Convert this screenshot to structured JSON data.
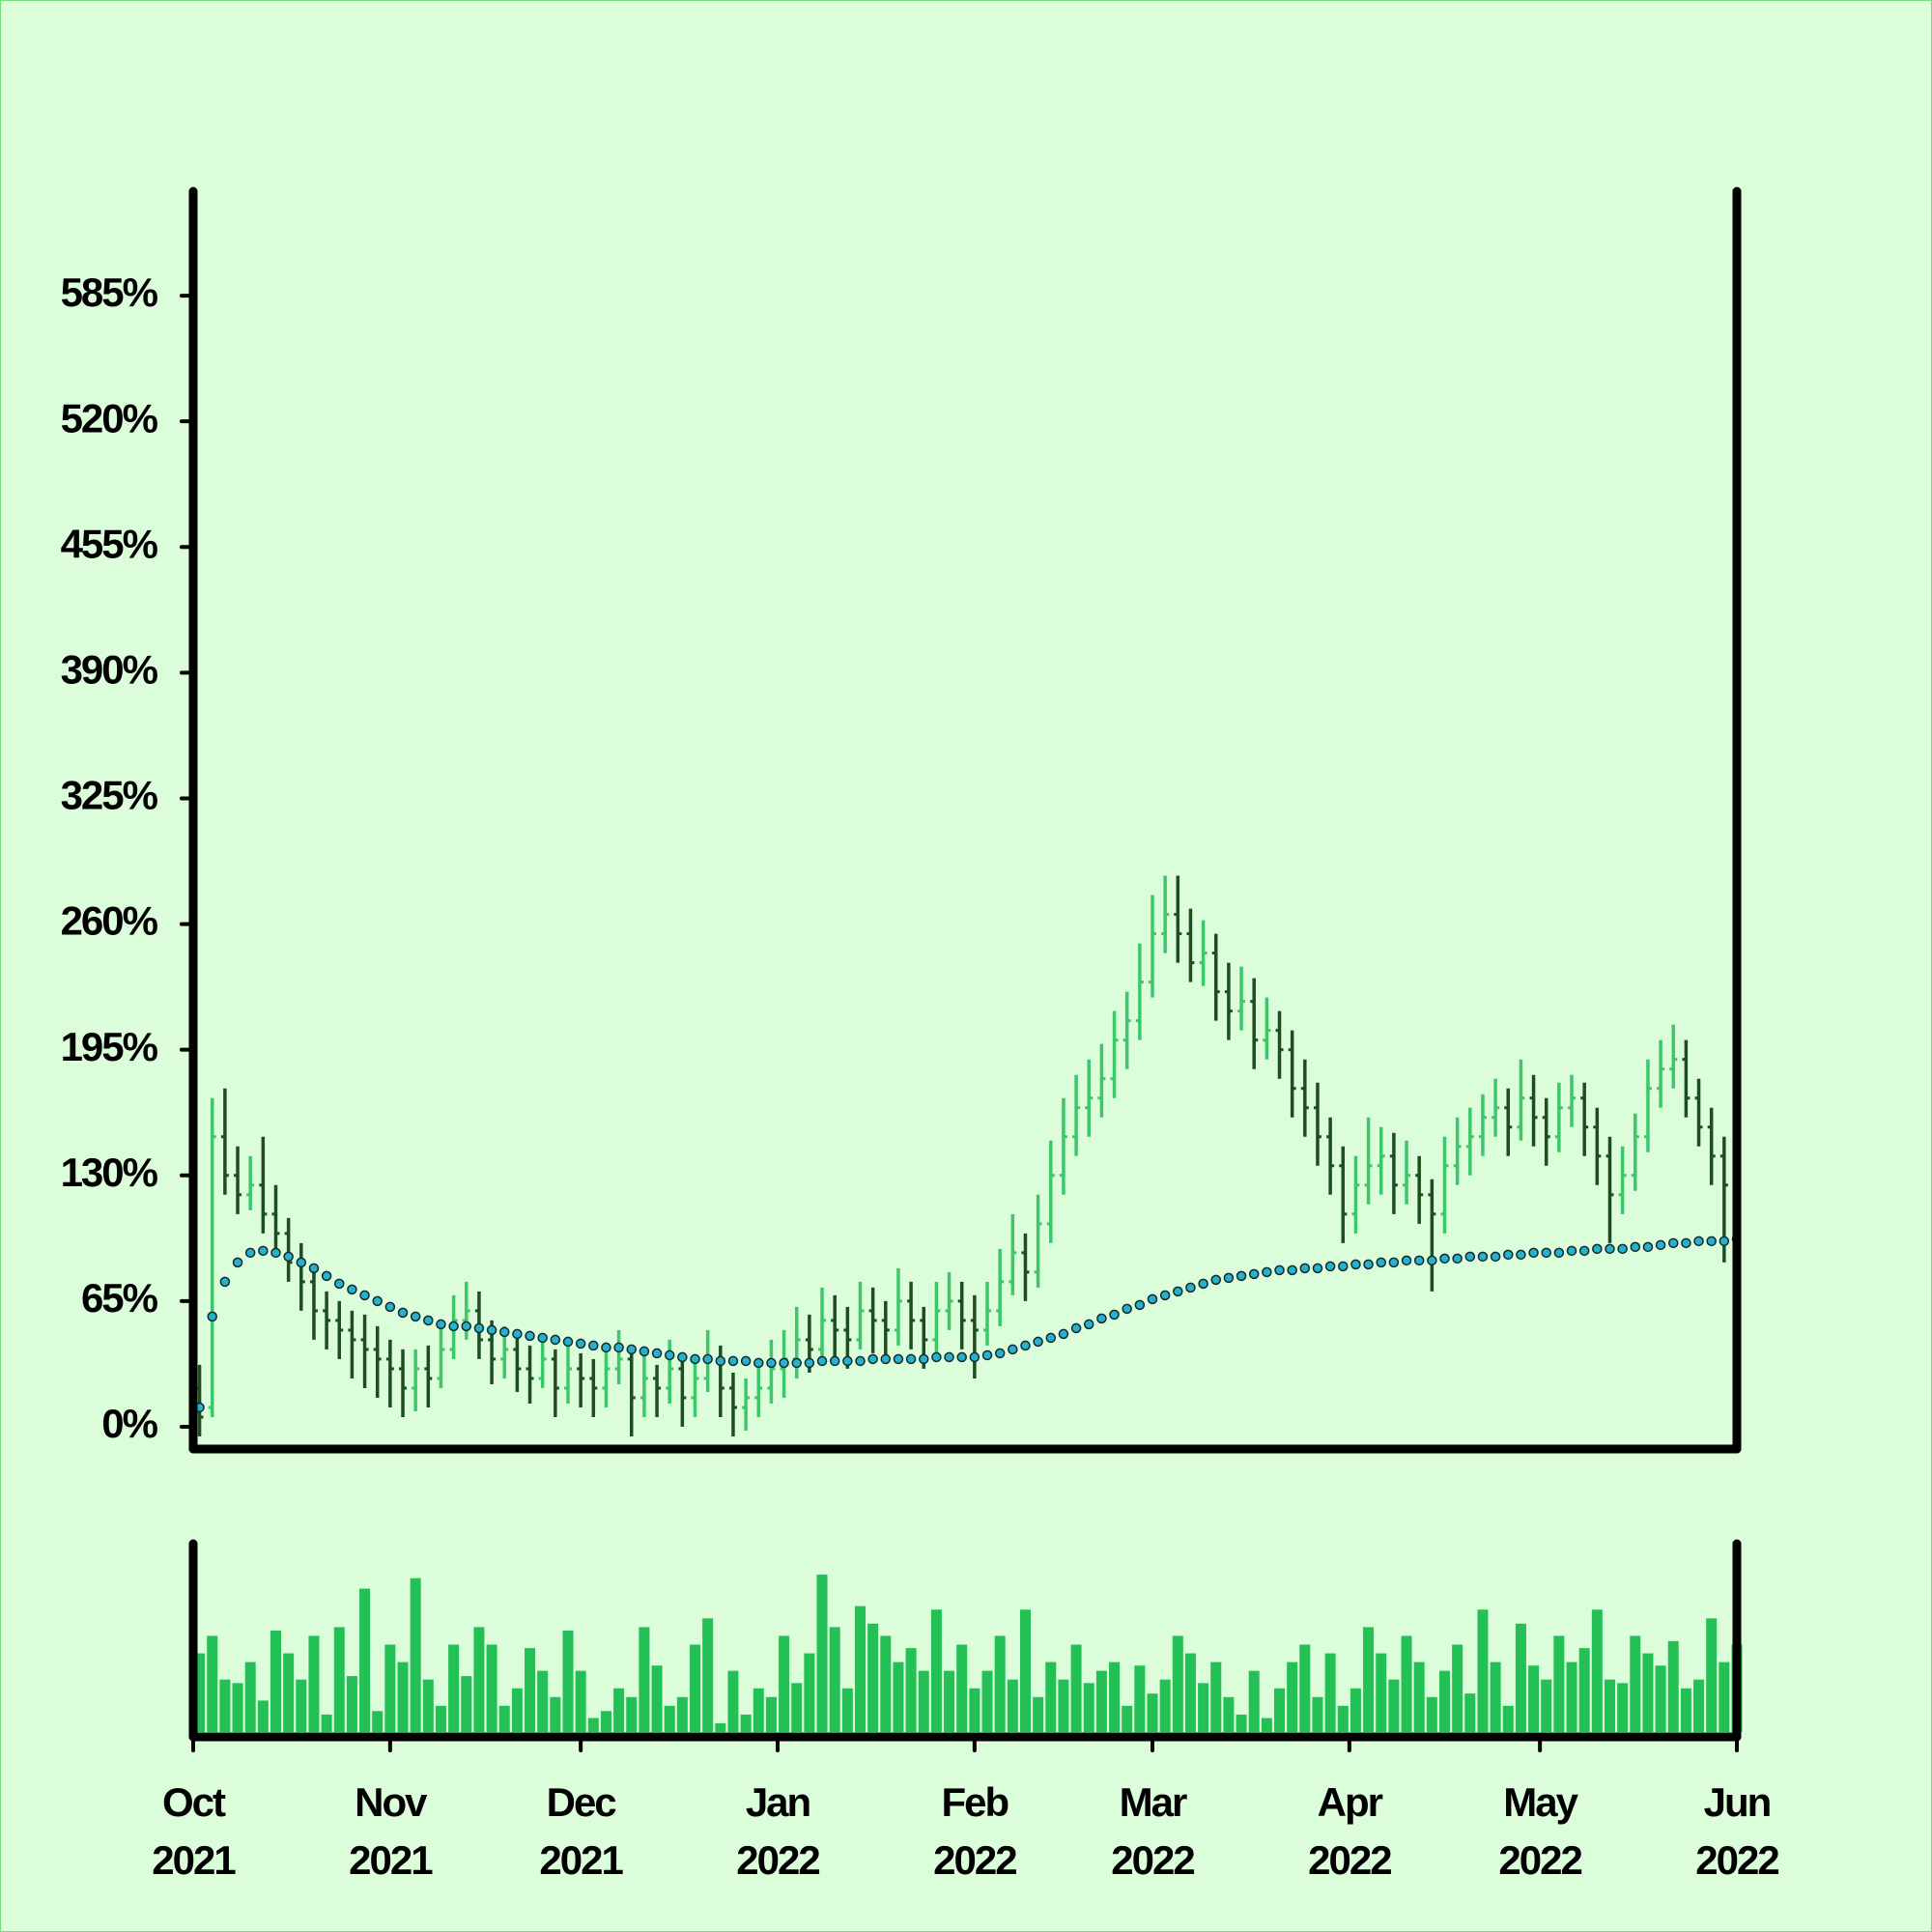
{
  "chart_data": {
    "type": "ohlc",
    "up_color": "#3cc76a",
    "down_color": "#1f4d22",
    "volume_color": "#22c055",
    "ma_color": "#2ab0c8",
    "xlim": [
      0,
      243
    ],
    "xticks": [
      {
        "value": 0,
        "label": "Oct 2021"
      },
      {
        "value": 31,
        "label": "Nov 2021"
      },
      {
        "value": 61,
        "label": "Dec 2021"
      },
      {
        "value": 92,
        "label": "Jan 2022"
      },
      {
        "value": 123,
        "label": "Feb 2022"
      },
      {
        "value": 151,
        "label": "Mar 2022"
      },
      {
        "value": 182,
        "label": "Apr 2022"
      },
      {
        "value": 212,
        "label": "May 2022"
      },
      {
        "value": 243,
        "label": "Jun 2022"
      }
    ],
    "ylim": [
      -11.5,
      639
    ],
    "yticks": [
      {
        "value": 0,
        "label": "0%"
      },
      {
        "value": 65,
        "label": "65%"
      },
      {
        "value": 130,
        "label": "130%"
      },
      {
        "value": 195,
        "label": "195%"
      },
      {
        "value": 260,
        "label": "260%"
      },
      {
        "value": 325,
        "label": "325%"
      },
      {
        "value": 390,
        "label": "390%"
      },
      {
        "value": 455,
        "label": "455%"
      },
      {
        "value": 520,
        "label": "520%"
      },
      {
        "value": 585,
        "label": "585%"
      }
    ],
    "volume_ylim": [
      0,
      100
    ],
    "x": [
      1,
      3,
      5,
      7,
      9,
      11,
      13,
      15,
      17,
      19,
      21,
      23,
      25,
      27,
      29,
      31,
      33,
      35,
      37,
      39,
      41,
      43,
      45,
      47,
      49,
      51,
      53,
      55,
      57,
      59,
      61,
      63,
      65,
      67,
      69,
      71,
      73,
      75,
      77,
      79,
      81,
      83,
      85,
      87,
      89,
      91,
      93,
      95,
      97,
      99,
      101,
      103,
      105,
      107,
      109,
      111,
      113,
      115,
      117,
      119,
      121,
      123,
      125,
      127,
      129,
      131,
      133,
      135,
      137,
      139,
      141,
      143,
      145,
      147,
      149,
      151,
      153,
      155,
      157,
      159,
      161,
      163,
      165,
      167,
      169,
      171,
      173,
      175,
      177,
      179,
      181,
      183,
      185,
      187,
      189,
      191,
      193,
      195,
      197,
      199,
      201,
      203,
      205,
      207,
      209,
      211,
      213,
      215,
      217,
      219,
      221,
      223,
      225,
      227,
      229,
      231,
      233,
      235,
      237,
      239,
      241,
      243
    ],
    "ohlc": [
      [
        20,
        32,
        -5,
        5
      ],
      [
        10,
        170,
        5,
        150
      ],
      [
        150,
        175,
        120,
        130
      ],
      [
        130,
        145,
        110,
        120
      ],
      [
        120,
        140,
        112,
        125
      ],
      [
        125,
        150,
        100,
        110
      ],
      [
        110,
        125,
        90,
        100
      ],
      [
        100,
        108,
        75,
        85
      ],
      [
        85,
        95,
        60,
        75
      ],
      [
        75,
        80,
        45,
        60
      ],
      [
        60,
        70,
        40,
        55
      ],
      [
        55,
        65,
        35,
        50
      ],
      [
        50,
        60,
        25,
        45
      ],
      [
        45,
        58,
        20,
        40
      ],
      [
        40,
        52,
        15,
        35
      ],
      [
        35,
        45,
        10,
        30
      ],
      [
        30,
        40,
        5,
        20
      ],
      [
        20,
        40,
        8,
        30
      ],
      [
        30,
        42,
        10,
        25
      ],
      [
        25,
        52,
        20,
        40
      ],
      [
        40,
        68,
        35,
        55
      ],
      [
        55,
        75,
        45,
        60
      ],
      [
        60,
        70,
        35,
        45
      ],
      [
        45,
        55,
        22,
        35
      ],
      [
        35,
        52,
        25,
        40
      ],
      [
        40,
        48,
        18,
        30
      ],
      [
        30,
        42,
        12,
        25
      ],
      [
        25,
        45,
        20,
        35
      ],
      [
        35,
        40,
        5,
        20
      ],
      [
        20,
        42,
        12,
        30
      ],
      [
        30,
        38,
        10,
        25
      ],
      [
        25,
        35,
        5,
        20
      ],
      [
        20,
        42,
        10,
        30
      ],
      [
        30,
        50,
        22,
        35
      ],
      [
        35,
        40,
        -5,
        15
      ],
      [
        15,
        38,
        5,
        25
      ],
      [
        25,
        32,
        5,
        20
      ],
      [
        20,
        45,
        12,
        30
      ],
      [
        30,
        38,
        0,
        15
      ],
      [
        15,
        35,
        5,
        25
      ],
      [
        25,
        50,
        18,
        35
      ],
      [
        35,
        42,
        5,
        20
      ],
      [
        20,
        28,
        -5,
        10
      ],
      [
        10,
        25,
        -2,
        15
      ],
      [
        15,
        32,
        5,
        20
      ],
      [
        20,
        45,
        12,
        30
      ],
      [
        30,
        50,
        15,
        35
      ],
      [
        35,
        62,
        25,
        45
      ],
      [
        45,
        58,
        28,
        40
      ],
      [
        40,
        72,
        32,
        55
      ],
      [
        55,
        68,
        35,
        50
      ],
      [
        50,
        62,
        30,
        45
      ],
      [
        45,
        75,
        40,
        60
      ],
      [
        60,
        72,
        38,
        55
      ],
      [
        55,
        65,
        35,
        50
      ],
      [
        50,
        82,
        42,
        65
      ],
      [
        65,
        75,
        40,
        55
      ],
      [
        55,
        62,
        30,
        45
      ],
      [
        45,
        75,
        38,
        60
      ],
      [
        60,
        80,
        50,
        65
      ],
      [
        65,
        75,
        40,
        55
      ],
      [
        55,
        68,
        25,
        50
      ],
      [
        50,
        75,
        42,
        60
      ],
      [
        60,
        92,
        52,
        75
      ],
      [
        75,
        110,
        68,
        90
      ],
      [
        90,
        100,
        65,
        80
      ],
      [
        80,
        120,
        72,
        105
      ],
      [
        105,
        148,
        95,
        130
      ],
      [
        130,
        170,
        120,
        150
      ],
      [
        150,
        182,
        140,
        165
      ],
      [
        165,
        190,
        150,
        170
      ],
      [
        170,
        198,
        160,
        180
      ],
      [
        180,
        215,
        170,
        200
      ],
      [
        200,
        225,
        185,
        210
      ],
      [
        210,
        250,
        200,
        230
      ],
      [
        230,
        275,
        222,
        255
      ],
      [
        255,
        285,
        245,
        265
      ],
      [
        265,
        285,
        240,
        255
      ],
      [
        255,
        268,
        230,
        240
      ],
      [
        240,
        262,
        228,
        245
      ],
      [
        245,
        255,
        210,
        225
      ],
      [
        225,
        240,
        200,
        215
      ],
      [
        215,
        238,
        205,
        220
      ],
      [
        220,
        232,
        185,
        200
      ],
      [
        200,
        222,
        190,
        205
      ],
      [
        205,
        215,
        180,
        195
      ],
      [
        195,
        205,
        160,
        175
      ],
      [
        175,
        190,
        150,
        165
      ],
      [
        165,
        178,
        135,
        150
      ],
      [
        150,
        160,
        120,
        135
      ],
      [
        135,
        145,
        95,
        110
      ],
      [
        110,
        140,
        100,
        125
      ],
      [
        125,
        160,
        115,
        135
      ],
      [
        135,
        155,
        120,
        140
      ],
      [
        140,
        152,
        110,
        125
      ],
      [
        125,
        148,
        115,
        130
      ],
      [
        130,
        140,
        105,
        120
      ],
      [
        120,
        128,
        70,
        110
      ],
      [
        110,
        150,
        100,
        135
      ],
      [
        135,
        160,
        125,
        145
      ],
      [
        145,
        165,
        130,
        150
      ],
      [
        150,
        172,
        140,
        160
      ],
      [
        160,
        180,
        150,
        165
      ],
      [
        165,
        175,
        140,
        155
      ],
      [
        155,
        190,
        148,
        170
      ],
      [
        170,
        182,
        145,
        160
      ],
      [
        160,
        170,
        135,
        150
      ],
      [
        150,
        178,
        142,
        165
      ],
      [
        165,
        182,
        155,
        170
      ],
      [
        170,
        178,
        140,
        155
      ],
      [
        155,
        165,
        125,
        140
      ],
      [
        140,
        150,
        95,
        120
      ],
      [
        120,
        145,
        110,
        130
      ],
      [
        130,
        162,
        122,
        150
      ],
      [
        150,
        190,
        142,
        175
      ],
      [
        175,
        200,
        165,
        185
      ],
      [
        185,
        208,
        175,
        190
      ],
      [
        190,
        200,
        160,
        170
      ],
      [
        170,
        180,
        145,
        155
      ],
      [
        155,
        165,
        125,
        140
      ],
      [
        140,
        150,
        85,
        125
      ],
      [
        125,
        135,
        100,
        110
      ]
    ],
    "volume": [
      45,
      55,
      30,
      28,
      40,
      18,
      58,
      45,
      30,
      55,
      10,
      60,
      32,
      82,
      12,
      50,
      40,
      88,
      30,
      15,
      50,
      32,
      60,
      50,
      15,
      25,
      48,
      35,
      20,
      58,
      35,
      8,
      12,
      25,
      20,
      60,
      38,
      15,
      20,
      50,
      65,
      5,
      35,
      10,
      25,
      20,
      55,
      28,
      45,
      90,
      60,
      25,
      72,
      62,
      55,
      40,
      48,
      35,
      70,
      35,
      50,
      25,
      35,
      55,
      30,
      70,
      20,
      40,
      30,
      50,
      28,
      35,
      40,
      15,
      38,
      22,
      30,
      55,
      45,
      28,
      40,
      20,
      10,
      35,
      8,
      25,
      40,
      50,
      20,
      45,
      15,
      25,
      60,
      45,
      30,
      55,
      40,
      20,
      35,
      50,
      22,
      70,
      40,
      15,
      62,
      38,
      30,
      55,
      40,
      48,
      70,
      30,
      28,
      55,
      45,
      38,
      52,
      25,
      30,
      65,
      40,
      50
    ],
    "moving_average": [
      10,
      57,
      75,
      85,
      90,
      91,
      90,
      88,
      85,
      82,
      78,
      74,
      71,
      68,
      65,
      62,
      59,
      57,
      55,
      53,
      52,
      52,
      51,
      50,
      49,
      48,
      47,
      46,
      45,
      44,
      43,
      42,
      41,
      41,
      40,
      39,
      38,
      37,
      36,
      35,
      35,
      34,
      34,
      34,
      33,
      33,
      33,
      33,
      33,
      34,
      34,
      34,
      34,
      35,
      35,
      35,
      35,
      35,
      36,
      36,
      36,
      36,
      37,
      38,
      40,
      42,
      44,
      46,
      48,
      51,
      53,
      56,
      58,
      61,
      63,
      66,
      68,
      70,
      72,
      74,
      76,
      77,
      78,
      79,
      80,
      81,
      81,
      82,
      82,
      83,
      83,
      84,
      84,
      85,
      85,
      86,
      86,
      86,
      87,
      87,
      88,
      88,
      88,
      89,
      89,
      90,
      90,
      90,
      91,
      91,
      92,
      92,
      92,
      93,
      93,
      94,
      95,
      95,
      96,
      96,
      96,
      97
    ]
  }
}
